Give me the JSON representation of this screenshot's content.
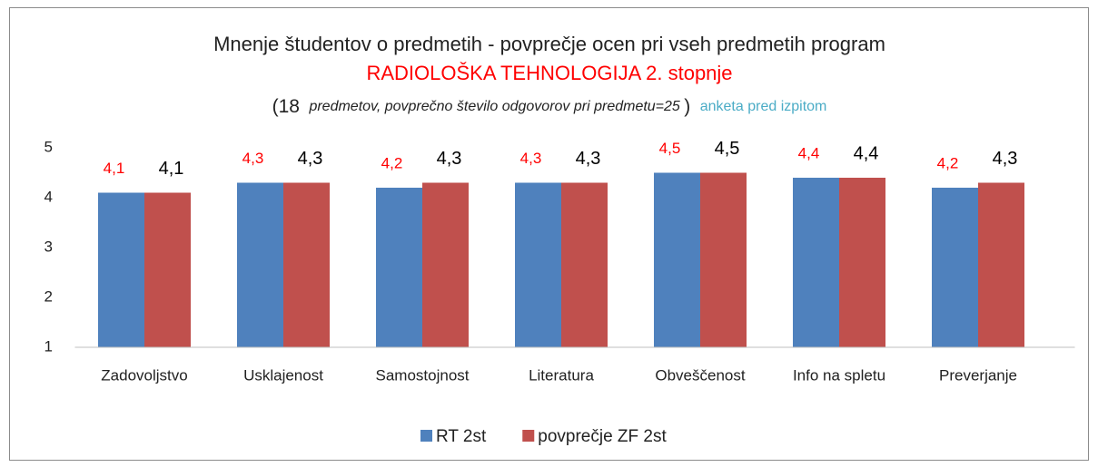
{
  "chart_data": {
    "type": "bar",
    "title": "Mnenje študentov o predmetih - povprečje ocen pri vseh predmetih program",
    "title_line2": "RADIOLOŠKA TEHNOLOGIJA 2. stopnje",
    "subtitle_parts": [
      "(18",
      "predmetov, povprečno število odgovorov pri predmetu=25",
      ")",
      "anketa pred izpitom"
    ],
    "categories": [
      "Zadovoljstvo",
      "Usklajenost",
      "Samostojnost",
      "Literatura",
      "Obveščenost",
      "Info na spletu",
      "Preverjanje"
    ],
    "series": [
      {
        "name": "RT 2st",
        "color": "#4f81bd",
        "label_color": "#ff0000",
        "values": [
          4.1,
          4.3,
          4.2,
          4.3,
          4.5,
          4.4,
          4.2
        ],
        "value_labels": [
          "4,1",
          "4,3",
          "4,2",
          "4,3",
          "4,5",
          "4,4",
          "4,2"
        ]
      },
      {
        "name": "povprečje ZF 2st",
        "color": "#c0504d",
        "label_color": "#000000",
        "values": [
          4.1,
          4.3,
          4.3,
          4.3,
          4.5,
          4.4,
          4.3
        ],
        "value_labels": [
          "4,1",
          "4,3",
          "4,3",
          "4,3",
          "4,5",
          "4,4",
          "4,3"
        ]
      }
    ],
    "ylim": [
      1,
      5
    ],
    "yticks": [
      1,
      2,
      3,
      4,
      5
    ],
    "grid": false,
    "legend": "bottom"
  }
}
